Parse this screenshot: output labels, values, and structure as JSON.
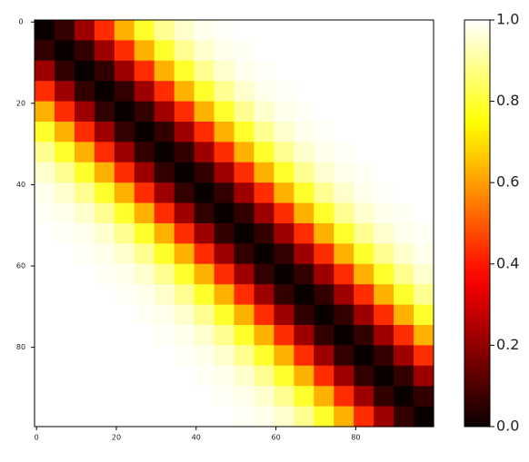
{
  "chart_data": {
    "type": "heatmap",
    "cmap": "hot",
    "xlim": [
      -0.5,
      99.5
    ],
    "ylim": [
      99.5,
      -0.5
    ],
    "xticks": [
      0,
      20,
      40,
      60,
      80
    ],
    "yticks": [
      0,
      20,
      40,
      60,
      80
    ],
    "clim": [
      0,
      1
    ],
    "cticks": [
      {
        "value": 0,
        "label": "0.0"
      },
      0.2,
      0.4,
      0.6,
      0.8,
      {
        "value": 1,
        "label": "1.0"
      }
    ],
    "z": [
      [
        0,
        0.06,
        0.22,
        0.43,
        0.63,
        0.79,
        0.89,
        0.95,
        0.98,
        0.99,
        1,
        1,
        1,
        1,
        1,
        1,
        1,
        1,
        1,
        1
      ],
      [
        0.06,
        0,
        0.06,
        0.22,
        0.43,
        0.63,
        0.79,
        0.89,
        0.95,
        0.98,
        0.99,
        1,
        1,
        1,
        1,
        1,
        1,
        1,
        1,
        1
      ],
      [
        0.22,
        0.06,
        0,
        0.06,
        0.22,
        0.43,
        0.63,
        0.79,
        0.89,
        0.95,
        0.98,
        0.99,
        1,
        1,
        1,
        1,
        1,
        1,
        1,
        1
      ],
      [
        0.43,
        0.22,
        0.06,
        0,
        0.06,
        0.22,
        0.43,
        0.63,
        0.79,
        0.89,
        0.95,
        0.98,
        0.99,
        1,
        1,
        1,
        1,
        1,
        1,
        1
      ],
      [
        0.63,
        0.43,
        0.22,
        0.06,
        0,
        0.06,
        0.22,
        0.43,
        0.63,
        0.79,
        0.89,
        0.95,
        0.98,
        0.99,
        1,
        1,
        1,
        1,
        1,
        1
      ],
      [
        0.79,
        0.63,
        0.43,
        0.22,
        0.06,
        0,
        0.06,
        0.22,
        0.43,
        0.63,
        0.79,
        0.89,
        0.95,
        0.98,
        0.99,
        1,
        1,
        1,
        1,
        1
      ],
      [
        0.89,
        0.79,
        0.63,
        0.43,
        0.22,
        0.06,
        0,
        0.06,
        0.22,
        0.43,
        0.63,
        0.79,
        0.89,
        0.95,
        0.98,
        0.99,
        1,
        1,
        1,
        1
      ],
      [
        0.95,
        0.89,
        0.79,
        0.63,
        0.43,
        0.22,
        0.06,
        0,
        0.06,
        0.22,
        0.43,
        0.63,
        0.79,
        0.89,
        0.95,
        0.98,
        0.99,
        1,
        1,
        1
      ],
      [
        0.98,
        0.95,
        0.89,
        0.79,
        0.63,
        0.43,
        0.22,
        0.06,
        0,
        0.06,
        0.22,
        0.43,
        0.63,
        0.79,
        0.89,
        0.95,
        0.98,
        0.99,
        1,
        1
      ],
      [
        0.99,
        0.98,
        0.95,
        0.89,
        0.79,
        0.63,
        0.43,
        0.22,
        0.06,
        0,
        0.06,
        0.22,
        0.43,
        0.63,
        0.79,
        0.89,
        0.95,
        0.98,
        0.99,
        1
      ],
      [
        1,
        0.99,
        0.98,
        0.95,
        0.89,
        0.79,
        0.63,
        0.43,
        0.22,
        0.06,
        0,
        0.06,
        0.22,
        0.43,
        0.63,
        0.79,
        0.89,
        0.95,
        0.98,
        0.99
      ],
      [
        1,
        1,
        0.99,
        0.98,
        0.95,
        0.89,
        0.79,
        0.63,
        0.43,
        0.22,
        0.06,
        0,
        0.06,
        0.22,
        0.43,
        0.63,
        0.79,
        0.89,
        0.95,
        0.98
      ],
      [
        1,
        1,
        1,
        0.99,
        0.98,
        0.95,
        0.89,
        0.79,
        0.63,
        0.43,
        0.22,
        0.06,
        0,
        0.06,
        0.22,
        0.43,
        0.63,
        0.79,
        0.89,
        0.95
      ],
      [
        1,
        1,
        1,
        1,
        0.99,
        0.98,
        0.95,
        0.89,
        0.79,
        0.63,
        0.43,
        0.22,
        0.06,
        0,
        0.06,
        0.22,
        0.43,
        0.63,
        0.79,
        0.89
      ],
      [
        1,
        1,
        1,
        1,
        1,
        0.99,
        0.98,
        0.95,
        0.89,
        0.79,
        0.63,
        0.43,
        0.22,
        0.06,
        0,
        0.06,
        0.22,
        0.43,
        0.63,
        0.79
      ],
      [
        1,
        1,
        1,
        1,
        1,
        1,
        0.99,
        0.98,
        0.95,
        0.89,
        0.79,
        0.63,
        0.43,
        0.22,
        0.06,
        0,
        0.06,
        0.22,
        0.43,
        0.63
      ],
      [
        1,
        1,
        1,
        1,
        1,
        1,
        1,
        0.99,
        0.98,
        0.95,
        0.89,
        0.79,
        0.63,
        0.43,
        0.22,
        0.06,
        0,
        0.06,
        0.22,
        0.43
      ],
      [
        1,
        1,
        1,
        1,
        1,
        1,
        1,
        1,
        0.99,
        0.98,
        0.95,
        0.89,
        0.79,
        0.63,
        0.43,
        0.22,
        0.06,
        0,
        0.06,
        0.22
      ],
      [
        1,
        1,
        1,
        1,
        1,
        1,
        1,
        1,
        1,
        0.99,
        0.98,
        0.95,
        0.89,
        0.79,
        0.63,
        0.43,
        0.22,
        0.06,
        0,
        0.06
      ],
      [
        1,
        1,
        1,
        1,
        1,
        1,
        1,
        1,
        1,
        1,
        0.99,
        0.98,
        0.95,
        0.89,
        0.79,
        0.63,
        0.43,
        0.22,
        0.06,
        0
      ]
    ]
  }
}
